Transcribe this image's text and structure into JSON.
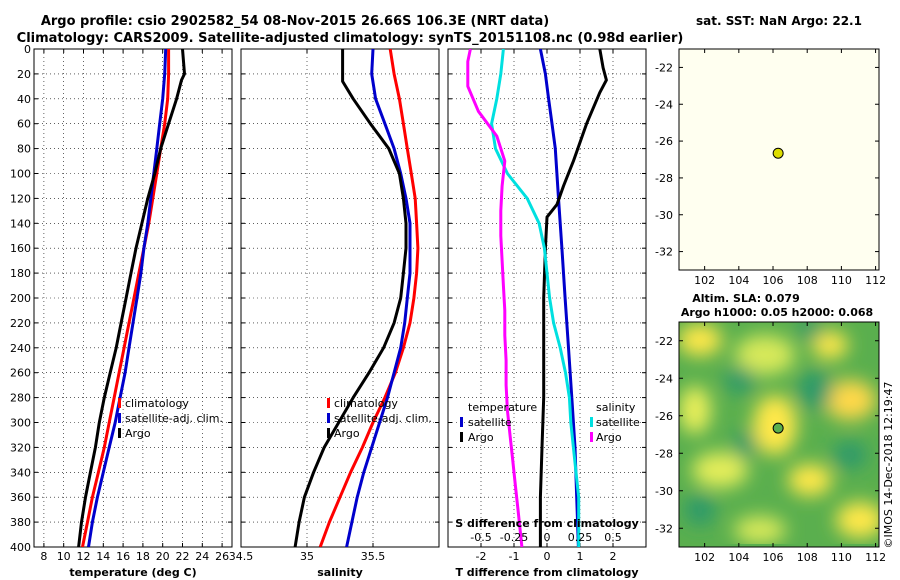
{
  "title_line1": "Argo profile: csio 2902582_54 08-Nov-2015 26.66S 106.3E (NRT data)",
  "title_line2": "Climatology: CARS2009. Satellite-adjusted climatology: synTS_20151108.nc (0.98d earlier)",
  "sst_title": "sat. SST: NaN Argo: 22.1",
  "sla_title1": "Altim. SLA: 0.079",
  "sla_title2": "Argo h1000: 0.05 h2000: 0.068",
  "credit": "©IMOS 14-Dec-2018 12:19:47",
  "colors": {
    "climatology": "#ff0000",
    "satellite": "#0000cc",
    "argo": "#000000",
    "sat_salinity": "#00e0e0",
    "argo_salinity": "#ff00ff"
  },
  "chart_data": [
    {
      "type": "line",
      "name": "temperature",
      "xlabel": "temperature (deg C)",
      "ylabel": "depth",
      "xlim": [
        7,
        27
      ],
      "ylim": [
        400,
        0
      ],
      "xticks": [
        8,
        10,
        12,
        14,
        16,
        18,
        20,
        22,
        24,
        26
      ],
      "yticks": [
        0,
        20,
        40,
        60,
        80,
        100,
        120,
        140,
        160,
        180,
        200,
        220,
        240,
        260,
        280,
        300,
        320,
        340,
        360,
        380,
        400
      ],
      "legend": [
        "climatology",
        "satellite-adj. clim.",
        "Argo"
      ],
      "series": [
        {
          "name": "climatology",
          "color": "#ff0000",
          "points": [
            [
              20.6,
              0
            ],
            [
              20.6,
              20
            ],
            [
              20.5,
              40
            ],
            [
              20.2,
              60
            ],
            [
              19.8,
              80
            ],
            [
              19.4,
              100
            ],
            [
              19.0,
              120
            ],
            [
              18.6,
              140
            ],
            [
              18.1,
              160
            ],
            [
              17.6,
              180
            ],
            [
              17.1,
              200
            ],
            [
              16.6,
              220
            ],
            [
              16.1,
              240
            ],
            [
              15.6,
              260
            ],
            [
              15.1,
              280
            ],
            [
              14.6,
              300
            ],
            [
              14.1,
              320
            ],
            [
              13.5,
              340
            ],
            [
              12.9,
              360
            ],
            [
              12.4,
              380
            ],
            [
              11.9,
              400
            ]
          ]
        },
        {
          "name": "satellite-adj. clim.",
          "color": "#0000cc",
          "points": [
            [
              20.3,
              0
            ],
            [
              20.2,
              20
            ],
            [
              20.0,
              40
            ],
            [
              19.7,
              60
            ],
            [
              19.4,
              80
            ],
            [
              19.1,
              100
            ],
            [
              18.8,
              120
            ],
            [
              18.5,
              140
            ],
            [
              18.1,
              160
            ],
            [
              17.8,
              180
            ],
            [
              17.4,
              200
            ],
            [
              17.0,
              220
            ],
            [
              16.6,
              240
            ],
            [
              16.2,
              260
            ],
            [
              15.7,
              280
            ],
            [
              15.2,
              300
            ],
            [
              14.6,
              320
            ],
            [
              14.0,
              340
            ],
            [
              13.4,
              360
            ],
            [
              12.9,
              380
            ],
            [
              12.5,
              400
            ]
          ]
        },
        {
          "name": "Argo",
          "color": "#000000",
          "points": [
            [
              22.0,
              0
            ],
            [
              22.2,
              20
            ],
            [
              21.9,
              25
            ],
            [
              21.4,
              40
            ],
            [
              20.6,
              60
            ],
            [
              19.8,
              80
            ],
            [
              19.2,
              100
            ],
            [
              18.5,
              120
            ],
            [
              17.9,
              140
            ],
            [
              17.3,
              160
            ],
            [
              16.8,
              180
            ],
            [
              16.3,
              200
            ],
            [
              15.8,
              220
            ],
            [
              15.3,
              240
            ],
            [
              14.7,
              260
            ],
            [
              14.1,
              280
            ],
            [
              13.6,
              300
            ],
            [
              13.2,
              320
            ],
            [
              12.7,
              340
            ],
            [
              12.2,
              360
            ],
            [
              11.8,
              380
            ],
            [
              11.5,
              400
            ]
          ]
        }
      ]
    },
    {
      "type": "line",
      "name": "salinity",
      "xlabel": "salinity",
      "ylabel": "depth",
      "xlim": [
        34.5,
        36.0
      ],
      "ylim": [
        400,
        0
      ],
      "xticks": [
        34.5,
        35,
        35.5
      ],
      "xtick_labels": [
        "34.5",
        "35",
        "35.5"
      ],
      "yticks": [
        0,
        20,
        40,
        60,
        80,
        100,
        120,
        140,
        160,
        180,
        200,
        220,
        240,
        260,
        280,
        300,
        320,
        340,
        360,
        380,
        400
      ],
      "legend": [
        "climatology",
        "satellite-adj. clim.",
        "Argo"
      ],
      "series": [
        {
          "name": "climatology",
          "color": "#ff0000",
          "points": [
            [
              35.63,
              0
            ],
            [
              35.66,
              20
            ],
            [
              35.7,
              40
            ],
            [
              35.73,
              60
            ],
            [
              35.76,
              80
            ],
            [
              35.79,
              100
            ],
            [
              35.82,
              120
            ],
            [
              35.83,
              140
            ],
            [
              35.84,
              160
            ],
            [
              35.83,
              180
            ],
            [
              35.81,
              200
            ],
            [
              35.78,
              220
            ],
            [
              35.73,
              240
            ],
            [
              35.67,
              260
            ],
            [
              35.59,
              280
            ],
            [
              35.5,
              300
            ],
            [
              35.42,
              320
            ],
            [
              35.33,
              340
            ],
            [
              35.25,
              360
            ],
            [
              35.17,
              380
            ],
            [
              35.1,
              400
            ]
          ]
        },
        {
          "name": "satellite-adj. clim.",
          "color": "#0000cc",
          "points": [
            [
              35.5,
              0
            ],
            [
              35.49,
              20
            ],
            [
              35.52,
              40
            ],
            [
              35.59,
              60
            ],
            [
              35.66,
              80
            ],
            [
              35.71,
              100
            ],
            [
              35.75,
              120
            ],
            [
              35.78,
              140
            ],
            [
              35.78,
              160
            ],
            [
              35.78,
              180
            ],
            [
              35.76,
              200
            ],
            [
              35.74,
              220
            ],
            [
              35.71,
              240
            ],
            [
              35.66,
              260
            ],
            [
              35.61,
              280
            ],
            [
              35.55,
              300
            ],
            [
              35.49,
              320
            ],
            [
              35.43,
              340
            ],
            [
              35.38,
              360
            ],
            [
              35.34,
              380
            ],
            [
              35.3,
              400
            ]
          ]
        },
        {
          "name": "Argo",
          "color": "#000000",
          "points": [
            [
              35.27,
              0
            ],
            [
              35.27,
              20
            ],
            [
              35.27,
              26
            ],
            [
              35.35,
              40
            ],
            [
              35.48,
              60
            ],
            [
              35.62,
              80
            ],
            [
              35.7,
              100
            ],
            [
              35.73,
              120
            ],
            [
              35.75,
              140
            ],
            [
              35.75,
              160
            ],
            [
              35.73,
              180
            ],
            [
              35.71,
              200
            ],
            [
              35.66,
              220
            ],
            [
              35.58,
              240
            ],
            [
              35.47,
              260
            ],
            [
              35.35,
              280
            ],
            [
              35.24,
              300
            ],
            [
              35.13,
              320
            ],
            [
              35.05,
              340
            ],
            [
              34.98,
              360
            ],
            [
              34.94,
              380
            ],
            [
              34.91,
              400
            ]
          ]
        }
      ]
    },
    {
      "type": "line",
      "name": "difference",
      "xlabel": "T difference from climatology",
      "xlabel_top": "S difference from climatology",
      "xlim": [
        -3,
        3
      ],
      "ylim": [
        400,
        0
      ],
      "xticks": [
        -2,
        -1,
        0,
        1,
        2
      ],
      "xtick_labels": [
        "-2",
        "-1",
        "0",
        "1",
        "2"
      ],
      "sticks": [
        -0.5,
        -0.25,
        0,
        0.25,
        0.5
      ],
      "stick_labels": [
        "-0.5",
        "-0.25",
        "0",
        "0.25",
        "0.5"
      ],
      "yticks": [
        0,
        20,
        40,
        60,
        80,
        100,
        120,
        140,
        160,
        180,
        200,
        220,
        240,
        260,
        280,
        300,
        320,
        340,
        360,
        380,
        400
      ],
      "legend_t_title": "temperature",
      "legend_s_title": "salinity",
      "legend_t": [
        "satellite",
        "Argo"
      ],
      "legend_s": [
        "satellite",
        "Argo"
      ],
      "series": [
        {
          "name": "T satellite",
          "color": "#0000cc",
          "points": [
            [
              -0.2,
              0
            ],
            [
              -0.05,
              20
            ],
            [
              0.05,
              40
            ],
            [
              0.15,
              60
            ],
            [
              0.25,
              80
            ],
            [
              0.3,
              100
            ],
            [
              0.35,
              120
            ],
            [
              0.45,
              160
            ],
            [
              0.55,
              200
            ],
            [
              0.65,
              240
            ],
            [
              0.75,
              280
            ],
            [
              0.8,
              300
            ],
            [
              0.85,
              320
            ],
            [
              0.9,
              360
            ],
            [
              0.95,
              400
            ]
          ]
        },
        {
          "name": "T Argo",
          "color": "#000000",
          "points": [
            [
              1.6,
              0
            ],
            [
              1.7,
              15
            ],
            [
              1.8,
              25
            ],
            [
              1.6,
              35
            ],
            [
              1.2,
              60
            ],
            [
              0.8,
              90
            ],
            [
              0.5,
              110
            ],
            [
              0.3,
              125
            ],
            [
              0.0,
              135
            ],
            [
              -0.05,
              160
            ],
            [
              -0.1,
              200
            ],
            [
              -0.1,
              240
            ],
            [
              -0.1,
              280
            ],
            [
              -0.15,
              320
            ],
            [
              -0.2,
              360
            ],
            [
              -0.2,
              400
            ]
          ]
        },
        {
          "name": "S satellite",
          "color": "#00e0e0",
          "points": [
            [
              -0.33,
              0
            ],
            [
              -0.35,
              20
            ],
            [
              -0.38,
              40
            ],
            [
              -0.42,
              60
            ],
            [
              -0.39,
              80
            ],
            [
              -0.3,
              100
            ],
            [
              -0.15,
              120
            ],
            [
              -0.06,
              140
            ],
            [
              -0.02,
              160
            ],
            [
              0,
              180
            ],
            [
              0.02,
              200
            ],
            [
              0.05,
              220
            ],
            [
              0.1,
              240
            ],
            [
              0.14,
              260
            ],
            [
              0.17,
              280
            ],
            [
              0.18,
              300
            ],
            [
              0.2,
              320
            ],
            [
              0.22,
              340
            ],
            [
              0.24,
              360
            ],
            [
              0.24,
              380
            ],
            [
              0.24,
              400
            ]
          ]
        },
        {
          "name": "S Argo",
          "color": "#ff00ff",
          "points": [
            [
              -0.58,
              0
            ],
            [
              -0.6,
              10
            ],
            [
              -0.6,
              20
            ],
            [
              -0.6,
              30
            ],
            [
              -0.52,
              50
            ],
            [
              -0.38,
              70
            ],
            [
              -0.32,
              90
            ],
            [
              -0.34,
              110
            ],
            [
              -0.35,
              130
            ],
            [
              -0.35,
              150
            ],
            [
              -0.34,
              170
            ],
            [
              -0.33,
              190
            ],
            [
              -0.32,
              210
            ],
            [
              -0.32,
              230
            ],
            [
              -0.31,
              250
            ],
            [
              -0.31,
              270
            ],
            [
              -0.3,
              290
            ],
            [
              -0.28,
              310
            ],
            [
              -0.26,
              330
            ],
            [
              -0.24,
              350
            ],
            [
              -0.22,
              370
            ],
            [
              -0.2,
              390
            ],
            [
              -0.19,
              400
            ]
          ]
        }
      ]
    },
    {
      "type": "scatter",
      "name": "sst_map",
      "title": "sat. SST: NaN Argo: 22.1",
      "xlim": [
        100.5,
        112.2
      ],
      "ylim": [
        -33,
        -21
      ],
      "xticks": [
        102,
        104,
        106,
        108,
        110,
        112
      ],
      "yticks": [
        -22,
        -24,
        -26,
        -28,
        -30,
        -32
      ],
      "points": [
        [
          106.3,
          -26.66
        ]
      ],
      "point_color": "#dddd00"
    },
    {
      "type": "heatmap",
      "name": "sla_map",
      "title": "Altim. SLA: 0.079",
      "xlim": [
        100.5,
        112.2
      ],
      "ylim": [
        -33,
        -21
      ],
      "xticks": [
        102,
        104,
        106,
        108,
        110,
        112
      ],
      "yticks": [
        -22,
        -24,
        -26,
        -28,
        -30,
        -32
      ],
      "points": [
        [
          106.3,
          -26.66
        ]
      ]
    }
  ]
}
